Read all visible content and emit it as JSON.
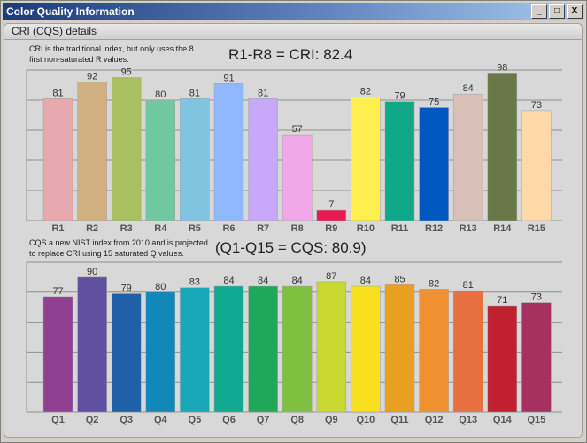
{
  "window": {
    "title": "Color Quality Information",
    "minimize": "_",
    "maximize": "□",
    "close": "X"
  },
  "panel": {
    "title": "CRI (CQS) details"
  },
  "cri": {
    "desc1": "CRI is the traditional index, but only uses the 8",
    "desc2": "first non-saturated R values.",
    "summary": "R1-R8 = CRI: 82.4"
  },
  "cqs": {
    "desc1": "CQS a new NIST index from 2010 and is projected",
    "desc2": "to replace CRI using 15 saturated Q values.",
    "summary": "(Q1-Q15 = CQS: 80.9)"
  },
  "chart_data": [
    {
      "type": "bar",
      "title": "R values",
      "ylim": [
        0,
        100
      ],
      "grid": true,
      "categories": [
        "R1",
        "R2",
        "R3",
        "R4",
        "R5",
        "R6",
        "R7",
        "R8",
        "R9",
        "R10",
        "R11",
        "R12",
        "R13",
        "R14",
        "R15"
      ],
      "values": [
        81,
        92,
        95,
        80,
        81,
        91,
        81,
        57,
        7,
        82,
        79,
        75,
        84,
        98,
        73
      ],
      "colors": [
        "#e8a8b0",
        "#d0b080",
        "#a8c060",
        "#70c8a0",
        "#80c4e0",
        "#90b8ff",
        "#c8a8f8",
        "#f0a8e8",
        "#e81850",
        "#fff050",
        "#10a888",
        "#0058c0",
        "#d8c0b8",
        "#687848",
        "#ffd8a8"
      ]
    },
    {
      "type": "bar",
      "title": "Q values",
      "ylim": [
        0,
        100
      ],
      "grid": true,
      "categories": [
        "Q1",
        "Q2",
        "Q3",
        "Q4",
        "Q5",
        "Q6",
        "Q7",
        "Q8",
        "Q9",
        "Q10",
        "Q11",
        "Q12",
        "Q13",
        "Q14",
        "Q15"
      ],
      "values": [
        77,
        90,
        79,
        80,
        83,
        84,
        84,
        84,
        87,
        84,
        85,
        82,
        81,
        71,
        73
      ],
      "colors": [
        "#904090",
        "#6050a0",
        "#2060a8",
        "#1088b8",
        "#18a8b8",
        "#10a890",
        "#20a858",
        "#80c040",
        "#c8d830",
        "#f8e020",
        "#e8a020",
        "#f09030",
        "#e87040",
        "#c02030",
        "#a83060"
      ]
    }
  ]
}
